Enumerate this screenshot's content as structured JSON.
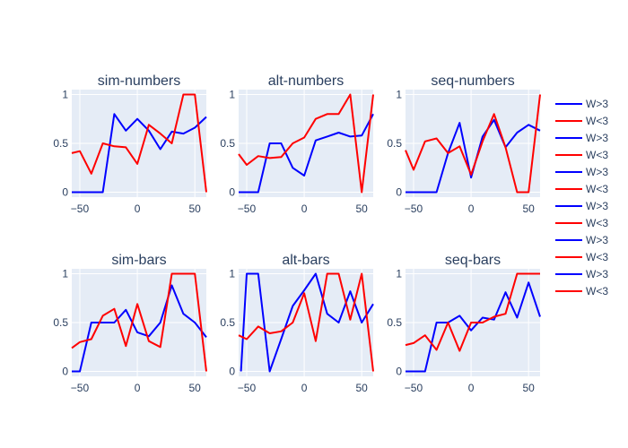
{
  "chart_data": {
    "type": "line",
    "colors": {
      "W>3": "#0000ff",
      "W<3": "#ff0000",
      "plot_bg": "#e5ecf6",
      "grid": "#ffffff",
      "text": "#2a3f5f"
    },
    "xlim": [
      -57,
      60
    ],
    "ylim": [
      -0.05,
      1.05
    ],
    "x_ticks": [
      -50,
      0,
      50
    ],
    "y_ticks": [
      0,
      0.5,
      1
    ],
    "y_tick_labels": [
      "0",
      "0.5",
      "1"
    ],
    "legend": [
      "W>3",
      "W<3",
      "W>3",
      "W<3",
      "W>3",
      "W<3",
      "W>3",
      "W<3",
      "W>3",
      "W<3",
      "W>3",
      "W<3"
    ],
    "subplots": [
      {
        "title": "sim-numbers",
        "series": [
          {
            "name": "W>3",
            "x": [
              -57,
              -50,
              -40,
              -30,
              -20,
              -10,
              0,
              10,
              20,
              30,
              40,
              50,
              60
            ],
            "y": [
              0,
              0,
              0,
              0,
              0.8,
              0.63,
              0.75,
              0.63,
              0.44,
              0.62,
              0.6,
              0.66,
              0.77
            ]
          },
          {
            "name": "W<3",
            "x": [
              -57,
              -50,
              -40,
              -30,
              -20,
              -10,
              0,
              10,
              20,
              30,
              40,
              50,
              60
            ],
            "y": [
              0.4,
              0.42,
              0.19,
              0.5,
              0.47,
              0.46,
              0.29,
              0.69,
              0.6,
              0.5,
              1,
              1,
              0
            ]
          }
        ]
      },
      {
        "title": "alt-numbers",
        "series": [
          {
            "name": "W>3",
            "x": [
              -57,
              -50,
              -40,
              -30,
              -20,
              -10,
              0,
              10,
              20,
              30,
              40,
              50,
              60
            ],
            "y": [
              0,
              0,
              0,
              0.5,
              0.5,
              0.25,
              0.17,
              0.53,
              0.57,
              0.61,
              0.57,
              0.58,
              0.8
            ]
          },
          {
            "name": "W<3",
            "x": [
              -57,
              -50,
              -40,
              -30,
              -20,
              -10,
              0,
              10,
              20,
              30,
              40,
              50,
              60
            ],
            "y": [
              0.39,
              0.28,
              0.37,
              0.35,
              0.36,
              0.5,
              0.56,
              0.75,
              0.8,
              0.8,
              1,
              0,
              1
            ]
          }
        ]
      },
      {
        "title": "seq-numbers",
        "series": [
          {
            "name": "W>3",
            "x": [
              -57,
              -50,
              -40,
              -30,
              -20,
              -10,
              0,
              10,
              20,
              30,
              40,
              50,
              60
            ],
            "y": [
              0,
              0,
              0,
              0,
              0.4,
              0.71,
              0.15,
              0.57,
              0.74,
              0.46,
              0.61,
              0.69,
              0.63
            ]
          },
          {
            "name": "W<3",
            "x": [
              -57,
              -50,
              -40,
              -30,
              -20,
              -10,
              0,
              10,
              20,
              30,
              40,
              50,
              60
            ],
            "y": [
              0.43,
              0.23,
              0.52,
              0.55,
              0.4,
              0.47,
              0.18,
              0.52,
              0.8,
              0.46,
              0,
              0,
              1
            ]
          }
        ]
      },
      {
        "title": "sim-bars",
        "series": [
          {
            "name": "W>3",
            "x": [
              -57,
              -50,
              -40,
              -30,
              -20,
              -10,
              0,
              10,
              20,
              30,
              40,
              50,
              60
            ],
            "y": [
              0,
              0,
              0.5,
              0.5,
              0.5,
              0.63,
              0.4,
              0.36,
              0.5,
              0.88,
              0.59,
              0.5,
              0.35
            ]
          },
          {
            "name": "W<3",
            "x": [
              -57,
              -50,
              -40,
              -30,
              -20,
              -10,
              0,
              10,
              20,
              30,
              40,
              50,
              60
            ],
            "y": [
              0.24,
              0.3,
              0.33,
              0.57,
              0.64,
              0.26,
              0.69,
              0.31,
              0.25,
              1,
              1,
              1,
              0
            ]
          }
        ]
      },
      {
        "title": "alt-bars",
        "series": [
          {
            "name": "W>3",
            "x": [
              -55,
              -50,
              -40,
              -30,
              -20,
              -10,
              0,
              10,
              20,
              30,
              40,
              50,
              60
            ],
            "y": [
              0,
              1,
              1,
              0,
              0.33,
              0.67,
              0.83,
              1,
              0.59,
              0.5,
              0.82,
              0.5,
              0.69
            ]
          },
          {
            "name": "W<3",
            "x": [
              -57,
              -50,
              -40,
              -30,
              -20,
              -10,
              0,
              10,
              20,
              30,
              40,
              50,
              60
            ],
            "y": [
              0.37,
              0.33,
              0.46,
              0.39,
              0.41,
              0.5,
              0.8,
              0.31,
              1,
              1,
              0.53,
              1,
              0
            ]
          }
        ]
      },
      {
        "title": "seq-bars",
        "series": [
          {
            "name": "W>3",
            "x": [
              -57,
              -50,
              -40,
              -30,
              -20,
              -10,
              0,
              10,
              20,
              30,
              40,
              50,
              60
            ],
            "y": [
              0,
              0,
              0,
              0.5,
              0.5,
              0.57,
              0.42,
              0.55,
              0.53,
              0.81,
              0.55,
              0.91,
              0.56
            ]
          },
          {
            "name": "W<3",
            "x": [
              -57,
              -50,
              -40,
              -30,
              -20,
              -10,
              0,
              10,
              20,
              30,
              40,
              50,
              60
            ],
            "y": [
              0.27,
              0.29,
              0.37,
              0.22,
              0.5,
              0.21,
              0.5,
              0.5,
              0.56,
              0.59,
              1,
              1,
              1
            ]
          }
        ]
      }
    ]
  }
}
